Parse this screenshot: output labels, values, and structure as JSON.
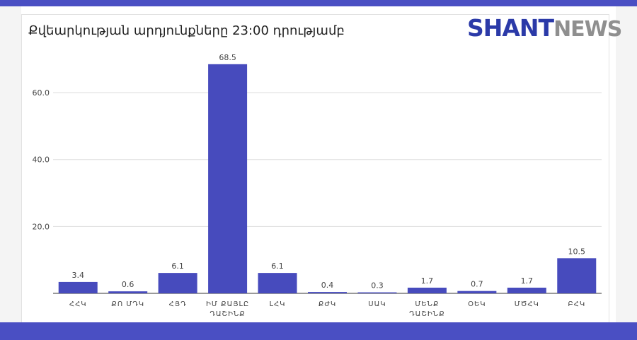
{
  "header": {
    "title": "Քվեարկության արդյունքները 23:00 դրությամբ",
    "logo_primary": "SHANT",
    "logo_secondary": "NEWS"
  },
  "colors": {
    "brand": "#4a4fc3",
    "bar": "#474bbd",
    "grid": "#dddddd",
    "text": "#444444"
  },
  "chart_data": {
    "type": "bar",
    "title": "Քվեարկության արդյունքները 23:00 դրությամբ",
    "xlabel": "",
    "ylabel": "",
    "ylim": [
      0,
      71
    ],
    "yticks": [
      {
        "value": 20,
        "label": "20.0"
      },
      {
        "value": 40,
        "label": "40.0"
      },
      {
        "value": 60,
        "label": "60.0"
      }
    ],
    "grid": true,
    "legend": "none",
    "categories": [
      [
        "ՀՀԿ"
      ],
      [
        "ՔՈ ՄԴԿ"
      ],
      [
        "ՀՅԴ"
      ],
      [
        "ԻՄ ՔԱՅԼԸ",
        "ԴԱՇԻՆՔ"
      ],
      [
        "ԼՀԿ"
      ],
      [
        "ՔԺԿ"
      ],
      [
        "ՍԱԿ"
      ],
      [
        "ՄԵՆՔ",
        "ԴԱՇԻՆՔ"
      ],
      [
        "ՕԵԿ"
      ],
      [
        "ՄԾՀԿ"
      ],
      [
        "ԲՀԿ"
      ]
    ],
    "values": [
      3.4,
      0.6,
      6.1,
      68.5,
      6.1,
      0.4,
      0.3,
      1.7,
      0.7,
      1.7,
      10.5
    ],
    "value_labels": [
      "3.4",
      "0.6",
      "6.1",
      "68.5",
      "6.1",
      "0.4",
      "0.3",
      "1.7",
      "0.7",
      "1.7",
      "10.5"
    ]
  }
}
